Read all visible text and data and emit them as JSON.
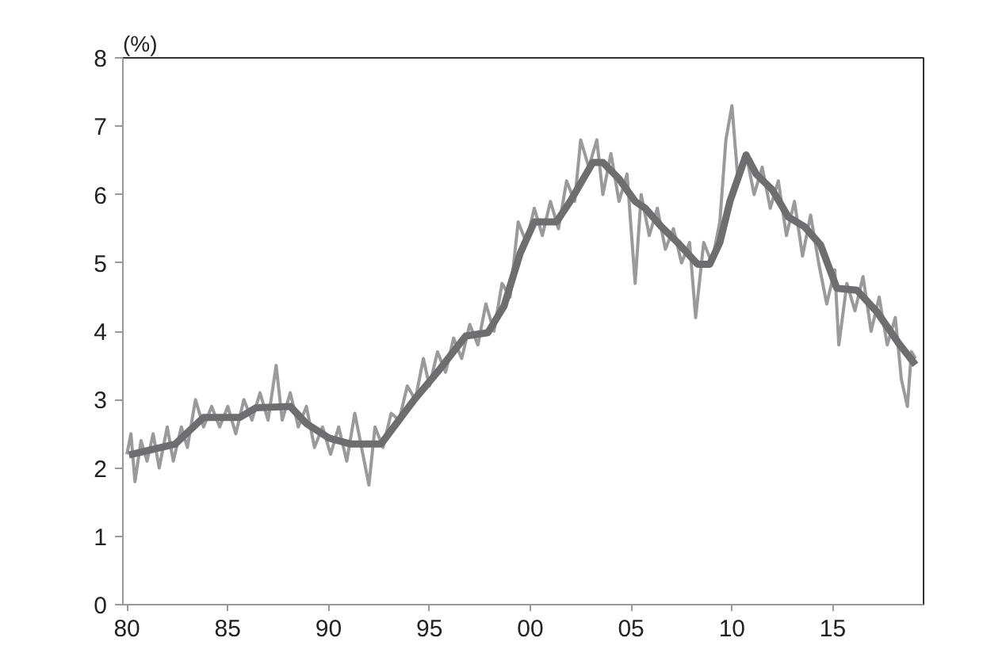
{
  "chart_data": {
    "type": "line",
    "ylabel": "(%)",
    "xlim": [
      1979.8,
      2019.5
    ],
    "ylim": [
      0,
      8
    ],
    "xticks": [
      {
        "value": 1980,
        "label": "80"
      },
      {
        "value": 1985,
        "label": "85"
      },
      {
        "value": 1990,
        "label": "90"
      },
      {
        "value": 1995,
        "label": "95"
      },
      {
        "value": 2000,
        "label": "00"
      },
      {
        "value": 2005,
        "label": "05"
      },
      {
        "value": 2010,
        "label": "10"
      },
      {
        "value": 2015,
        "label": "15"
      }
    ],
    "yticks": [
      0,
      1,
      2,
      3,
      4,
      5,
      6,
      7,
      8
    ],
    "grid": false,
    "series": [
      {
        "color": "#9a9a9c",
        "x": [
          1980.0,
          1980.2,
          1980.4,
          1980.7,
          1981.0,
          1981.3,
          1981.6,
          1982.0,
          1982.3,
          1982.7,
          1983.0,
          1983.4,
          1983.8,
          1984.2,
          1984.6,
          1985.0,
          1985.4,
          1985.8,
          1986.2,
          1986.6,
          1987.0,
          1987.4,
          1987.7,
          1988.1,
          1988.5,
          1988.9,
          1989.3,
          1989.7,
          1990.1,
          1990.5,
          1990.9,
          1991.3,
          1991.7,
          1992.0,
          1992.3,
          1992.7,
          1993.1,
          1993.5,
          1993.9,
          1994.3,
          1994.7,
          1995.0,
          1995.4,
          1995.8,
          1996.2,
          1996.6,
          1997.0,
          1997.4,
          1997.8,
          1998.2,
          1998.6,
          1999.0,
          1999.4,
          1999.8,
          2000.2,
          2000.6,
          2001.0,
          2001.4,
          2001.8,
          2002.2,
          2002.5,
          2002.9,
          2003.3,
          2003.6,
          2004.0,
          2004.4,
          2004.8,
          2005.2,
          2005.5,
          2005.9,
          2006.3,
          2006.7,
          2007.1,
          2007.5,
          2007.9,
          2008.2,
          2008.6,
          2009.0,
          2009.4,
          2009.7,
          2010.0,
          2010.3,
          2010.7,
          2011.1,
          2011.5,
          2011.9,
          2012.3,
          2012.7,
          2013.1,
          2013.5,
          2013.9,
          2014.3,
          2014.7,
          2015.1,
          2015.3,
          2015.7,
          2016.1,
          2016.5,
          2016.9,
          2017.3,
          2017.7,
          2018.1,
          2018.4,
          2018.7,
          2018.9,
          2019.1
        ],
        "values": [
          2.2,
          2.5,
          1.8,
          2.4,
          2.1,
          2.5,
          2.0,
          2.6,
          2.1,
          2.6,
          2.3,
          3.0,
          2.6,
          2.9,
          2.6,
          2.9,
          2.5,
          3.0,
          2.7,
          3.1,
          2.7,
          3.5,
          2.7,
          3.1,
          2.6,
          2.9,
          2.3,
          2.6,
          2.2,
          2.6,
          2.1,
          2.8,
          2.2,
          1.75,
          2.6,
          2.3,
          2.8,
          2.7,
          3.2,
          3.0,
          3.6,
          3.2,
          3.7,
          3.4,
          3.9,
          3.6,
          4.1,
          3.8,
          4.4,
          4.0,
          4.7,
          4.5,
          5.6,
          5.3,
          5.8,
          5.4,
          5.9,
          5.5,
          6.2,
          5.9,
          6.8,
          6.4,
          6.8,
          6.0,
          6.6,
          5.9,
          6.3,
          4.7,
          6.0,
          5.4,
          5.8,
          5.2,
          5.5,
          5.0,
          5.3,
          4.2,
          5.3,
          5.0,
          5.6,
          6.8,
          7.3,
          6.2,
          6.6,
          6.0,
          6.4,
          5.8,
          6.2,
          5.4,
          5.9,
          5.1,
          5.7,
          5.0,
          4.4,
          4.9,
          3.8,
          4.7,
          4.3,
          4.8,
          4.0,
          4.5,
          3.8,
          4.2,
          3.3,
          2.9,
          3.7,
          3.6
        ]
      },
      {
        "color": "#6e6e70",
        "x": [
          1980.1,
          1982.4,
          1983.8,
          1985.6,
          1986.4,
          1988.1,
          1988.9,
          1990.0,
          1991.1,
          1992.6,
          1994.2,
          1995.5,
          1996.8,
          1997.9,
          1998.7,
          1999.5,
          2000.2,
          2001.3,
          2002.0,
          2003.1,
          2003.6,
          2004.4,
          2005.2,
          2005.7,
          2006.5,
          2007.3,
          2008.3,
          2008.9,
          2009.4,
          2009.9,
          2010.7,
          2011.2,
          2012.0,
          2012.8,
          2013.6,
          2014.4,
          2015.2,
          2016.2,
          2017.2,
          2018.3,
          2019.1
        ],
        "values": [
          2.19,
          2.35,
          2.74,
          2.74,
          2.88,
          2.9,
          2.65,
          2.44,
          2.35,
          2.35,
          2.98,
          3.44,
          3.93,
          3.98,
          4.37,
          5.14,
          5.6,
          5.6,
          5.91,
          6.47,
          6.47,
          6.23,
          5.9,
          5.8,
          5.53,
          5.3,
          4.98,
          4.98,
          5.3,
          5.9,
          6.58,
          6.3,
          6.07,
          5.67,
          5.53,
          5.26,
          4.63,
          4.6,
          4.28,
          3.81,
          3.51
        ]
      }
    ]
  }
}
